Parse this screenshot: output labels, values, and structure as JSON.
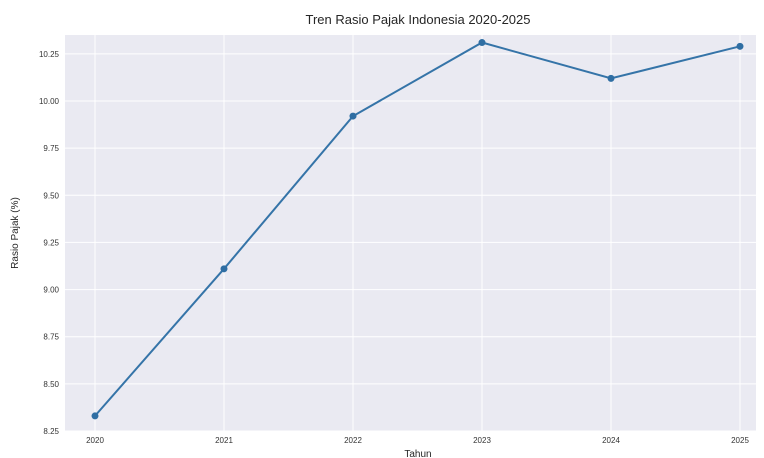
{
  "chart_data": {
    "type": "line",
    "title": "Tren Rasio Pajak Indonesia 2020-2025",
    "xlabel": "Tahun",
    "ylabel": "Rasio Pajak (%)",
    "x": [
      "2020",
      "2021",
      "2022",
      "2023",
      "2024",
      "2025"
    ],
    "series": [
      {
        "values": [
          8.33,
          9.11,
          9.92,
          10.31,
          10.12,
          10.29
        ]
      }
    ],
    "ylim": [
      8.25,
      10.35
    ],
    "yticks": [
      "8.25",
      "8.50",
      "8.75",
      "9.00",
      "9.25",
      "9.50",
      "9.75",
      "10.00",
      "10.25"
    ],
    "grid": true,
    "colors": {
      "line": "#3574a8",
      "marker": "#2f6ea3",
      "plot_bg": "#eaeaf2",
      "grid": "#ffffff"
    }
  }
}
